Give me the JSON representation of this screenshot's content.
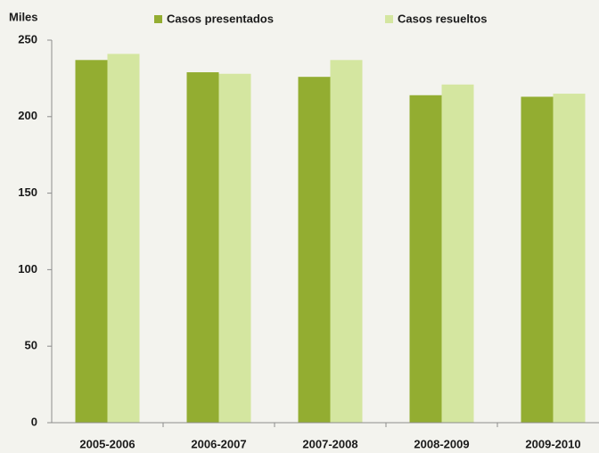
{
  "chart_data": {
    "type": "bar",
    "ylabel": "Miles",
    "categories": [
      "2005-2006",
      "2006-2007",
      "2007-2008",
      "2008-2009",
      "2009-2010"
    ],
    "series": [
      {
        "name": "Casos presentados",
        "color": "#93ad31",
        "values": [
          237,
          229,
          226,
          214,
          213
        ]
      },
      {
        "name": "Casos resueltos",
        "color": "#d4e6a0",
        "values": [
          241,
          228,
          237,
          221,
          215
        ]
      }
    ],
    "ylim": [
      0,
      250
    ],
    "yticks": [
      0,
      50,
      100,
      150,
      200,
      250
    ],
    "grid": false,
    "legend": "top"
  }
}
